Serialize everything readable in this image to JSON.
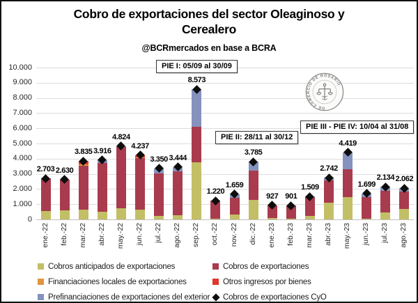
{
  "title_lines": [
    "Cobro de exportaciones del sector Oleaginoso y",
    "Cerealero"
  ],
  "subtitle": "@BCRmercados en base a BCRA",
  "annotations": [
    {
      "label": "PIE I: 05/09 al 30/09"
    },
    {
      "label": "PIE II: 28/11 al 30/12"
    },
    {
      "label": "PIE III - PIE IV: 10/04 al 31/08"
    }
  ],
  "logo": {
    "text": "BOLSA DE COMERCIO DE ROSARIO"
  },
  "colors": {
    "anticipados": "#C3BF66",
    "cobros": "#A93B4E",
    "financiaciones": "#E2953C",
    "otros": "#E0372B",
    "prefinanciaciones": "#8492BD",
    "marker": "#0D0D0D",
    "gridline": "#DCDCDC"
  },
  "chart_data": {
    "type": "bar",
    "stacked": true,
    "title": "Cobro de exportaciones del sector Oleaginoso y Cerealero",
    "xlabel": "",
    "ylabel": "",
    "ylim": [
      0,
      10000
    ],
    "ytick_step": 1000,
    "ytick_labels": [
      "0",
      "1.000",
      "2.000",
      "3.000",
      "4.000",
      "5.000",
      "6.000",
      "7.000",
      "8.000",
      "9.000",
      "10.000"
    ],
    "grid": true,
    "legend_position": "bottom",
    "categories": [
      "ene.-22",
      "feb.-22",
      "mar.-22",
      "abr.-22",
      "may.-22",
      "jun.-22",
      "jul.-22",
      "ago.-22",
      "sep.-22",
      "oct.-22",
      "nov.-22",
      "dic.-22",
      "ene.-23",
      "feb.-23",
      "mar.-23",
      "abr.-23",
      "may.-23",
      "jun.-23",
      "jul.-23",
      "ago.-23"
    ],
    "series": [
      {
        "name": "Cobros anticipados de exportaciones",
        "color": "#C3BF66",
        "values": [
          550,
          600,
          650,
          500,
          720,
          620,
          230,
          260,
          3750,
          60,
          300,
          1300,
          80,
          40,
          220,
          1100,
          1450,
          60,
          450,
          700
        ]
      },
      {
        "name": "Cobros de exportaciones",
        "color": "#A93B4E",
        "values": [
          2153,
          2030,
          2900,
          3200,
          4054,
          3400,
          2820,
          2884,
          2350,
          1160,
          1130,
          1900,
          847,
          861,
          1230,
          1480,
          1850,
          1430,
          1434,
          1130
        ]
      },
      {
        "name": "Financiaciones locales de exportaciones",
        "color": "#E2953C",
        "values": [
          0,
          0,
          60,
          0,
          0,
          60,
          0,
          0,
          0,
          0,
          0,
          0,
          0,
          0,
          0,
          0,
          0,
          0,
          0,
          0
        ]
      },
      {
        "name": "Otros ingresos por bienes",
        "color": "#E0372B",
        "values": [
          0,
          0,
          225,
          0,
          0,
          157,
          0,
          0,
          0,
          0,
          0,
          0,
          0,
          0,
          0,
          0,
          0,
          0,
          0,
          0
        ]
      },
      {
        "name": "Prefinanciaciones de exportaciones del exterior",
        "color": "#8492BD",
        "values": [
          0,
          0,
          0,
          216,
          50,
          0,
          300,
          300,
          2473,
          0,
          229,
          585,
          0,
          0,
          59,
          162,
          1119,
          209,
          250,
          232
        ]
      }
    ],
    "marker_series": {
      "name": "Cobros de exportaciones CyO",
      "symbol": "diamond",
      "color": "#0D0D0D",
      "values": [
        2703,
        2630,
        3835,
        3916,
        4824,
        4237,
        3350,
        3444,
        8573,
        1220,
        1659,
        3785,
        927,
        901,
        1509,
        2742,
        4419,
        1699,
        2134,
        2062
      ]
    },
    "data_labels": [
      "2.703",
      "2.630",
      "3.835",
      "3.916",
      "4.824",
      "4.237",
      "3.350",
      "3.444",
      "8.573",
      "1.220",
      "1.659",
      "3.785",
      "927",
      "901",
      "1.509",
      "2.742",
      "4.419",
      "1.699",
      "2.134",
      "2.062"
    ]
  },
  "legend": {
    "col1": [
      {
        "label": "Cobros anticipados de exportaciones",
        "color": "#C3BF66",
        "marker": "square"
      },
      {
        "label": "Financiaciones locales de exportaciones",
        "color": "#E2953C",
        "marker": "square"
      },
      {
        "label": "Prefinanciaciones de exportaciones del exterior",
        "color": "#8492BD",
        "marker": "square"
      }
    ],
    "col2": [
      {
        "label": "Cobros de exportaciones",
        "color": "#A93B4E",
        "marker": "square"
      },
      {
        "label": "Otros ingresos por bienes",
        "color": "#E0372B",
        "marker": "square"
      },
      {
        "label": "Cobros de exportaciones CyO",
        "color": "#0D0D0D",
        "marker": "diamond"
      }
    ]
  }
}
